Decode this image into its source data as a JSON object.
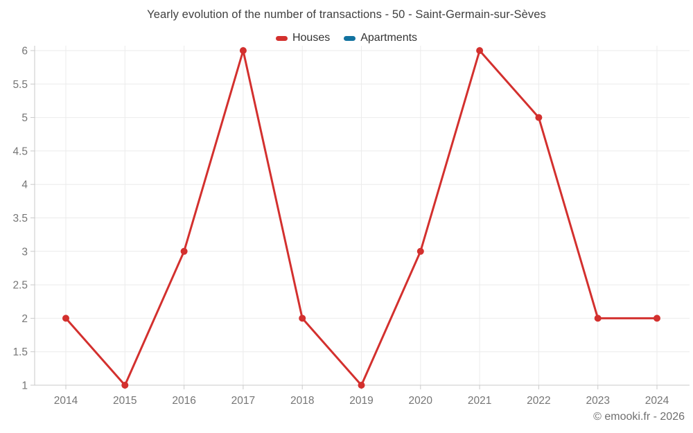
{
  "page": {
    "footer_credit": "© emooki.fr - 2026"
  },
  "legend": {
    "items": [
      {
        "label": "Houses",
        "color": "#d3302e"
      },
      {
        "label": "Apartments",
        "color": "#12729f"
      }
    ]
  },
  "chart_data": {
    "type": "line",
    "title": "Yearly evolution of the number of transactions - 50 - Saint-Germain-sur-Sèves",
    "categories": [
      "2014",
      "2015",
      "2016",
      "2017",
      "2018",
      "2019",
      "2020",
      "2021",
      "2022",
      "2023",
      "2024"
    ],
    "series": [
      {
        "name": "Houses",
        "color": "#d3302e",
        "values": [
          2,
          1,
          3,
          6,
          2,
          1,
          3,
          6,
          5,
          2,
          2
        ]
      },
      {
        "name": "Apartments",
        "color": "#12729f",
        "values": []
      }
    ],
    "xlabel": "",
    "ylabel": "",
    "ylim": [
      1,
      6
    ],
    "y_ticks": [
      1,
      1.5,
      2,
      2.5,
      3,
      3.5,
      4,
      4.5,
      5,
      5.5,
      6
    ],
    "grid": true,
    "legend_position": "top",
    "marker": "circle"
  }
}
